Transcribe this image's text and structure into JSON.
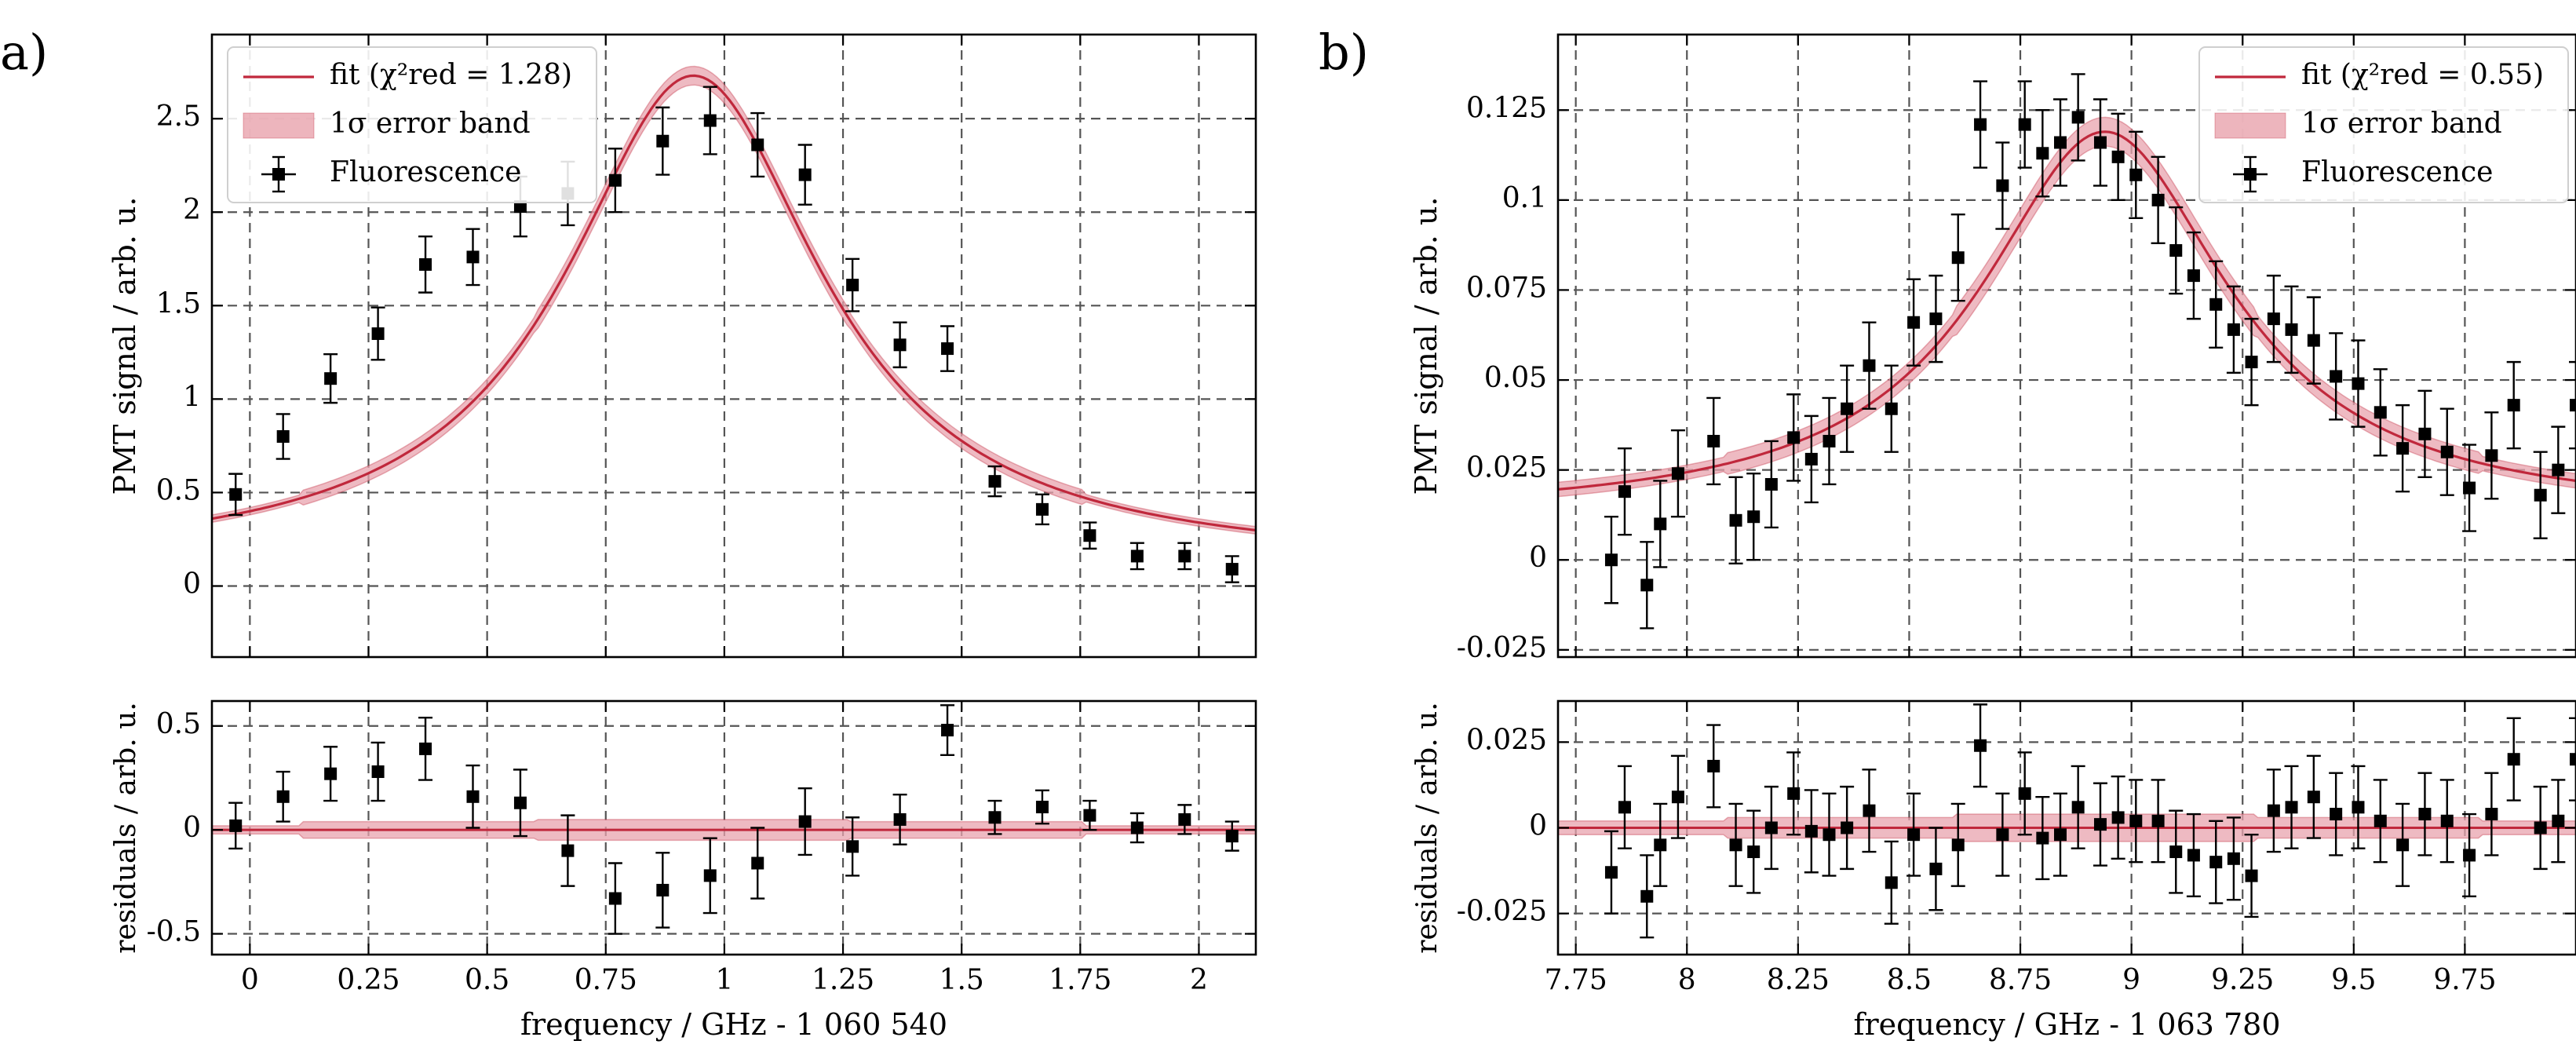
{
  "colors": {
    "fit": "#c0283c",
    "band": "#e8a3ad",
    "points": "#000000",
    "grid": "#555555"
  },
  "chart_data": [
    {
      "panel": "a)",
      "type": "scatter",
      "xlabel": "frequency / GHz - 1 060 540",
      "main": {
        "ylabel": "PMT signal / arb. u.",
        "xlim": [
          -0.08,
          2.12
        ],
        "ylim": [
          -0.38,
          2.95
        ],
        "xticks": [
          0,
          0.25,
          0.5,
          0.75,
          1,
          1.25,
          1.5,
          1.75,
          2
        ],
        "xtick_labels": [
          "0",
          "0.25",
          "0.5",
          "0.75",
          "1",
          "1.25",
          "1.5",
          "1.75",
          "2"
        ],
        "yticks": [
          0,
          0.5,
          1,
          1.5,
          2,
          2.5
        ],
        "ytick_labels": [
          "0",
          "0.5",
          "1",
          "1.5",
          "2",
          "2.5"
        ],
        "fit": {
          "model": "lorentzian",
          "amplitude": 2.62,
          "center": 0.935,
          "hwhm": 0.33,
          "offset": 0.11,
          "band_half_width": [
            0.05,
            0.04,
            0.02
          ]
        },
        "data": {
          "x": [
            -0.03,
            0.07,
            0.17,
            0.27,
            0.37,
            0.47,
            0.57,
            0.67,
            0.77,
            0.87,
            0.97,
            1.07,
            1.17,
            1.27,
            1.37,
            1.47,
            1.57,
            1.67,
            1.77,
            1.87,
            1.97,
            2.07
          ],
          "y": [
            0.49,
            0.8,
            1.11,
            1.35,
            1.72,
            1.76,
            2.03,
            2.1,
            2.17,
            2.38,
            2.49,
            2.36,
            2.2,
            1.61,
            1.29,
            1.27,
            0.56,
            0.41,
            0.27,
            0.16,
            0.16,
            0.09
          ],
          "yerr": [
            0.11,
            0.12,
            0.13,
            0.14,
            0.15,
            0.15,
            0.16,
            0.17,
            0.17,
            0.18,
            0.18,
            0.17,
            0.16,
            0.14,
            0.12,
            0.12,
            0.08,
            0.08,
            0.07,
            0.07,
            0.07,
            0.07
          ],
          "xerr": 0.012
        },
        "legend": [
          {
            "kind": "line",
            "label": "fit (χ²red = 1.28)"
          },
          {
            "kind": "band",
            "label": "1σ error band"
          },
          {
            "kind": "marker",
            "label": "Fluorescence"
          }
        ],
        "legend_position": "top-left"
      },
      "residuals": {
        "ylabel": "residuals / arb. u.",
        "ylim": [
          -0.6,
          0.62
        ],
        "yticks": [
          -0.5,
          0,
          0.5
        ],
        "ytick_labels": [
          "-0.5",
          "0",
          "0.5"
        ],
        "y": [
          0.02,
          0.16,
          0.27,
          0.28,
          0.39,
          0.16,
          0.13,
          -0.1,
          -0.33,
          -0.29,
          -0.22,
          -0.16,
          0.04,
          -0.08,
          0.05,
          0.48,
          0.06,
          0.11,
          0.07,
          0.01,
          0.05,
          -0.03
        ],
        "yerr": [
          0.11,
          0.12,
          0.13,
          0.14,
          0.15,
          0.15,
          0.16,
          0.17,
          0.17,
          0.18,
          0.18,
          0.17,
          0.16,
          0.14,
          0.12,
          0.12,
          0.08,
          0.08,
          0.07,
          0.07,
          0.07,
          0.07
        ]
      }
    },
    {
      "panel": "b)",
      "type": "scatter",
      "xlabel": "frequency / GHz - 1 063 780",
      "main": {
        "ylabel": "PMT signal / arb. u.",
        "xlim": [
          7.71,
          10.0
        ],
        "ylim": [
          -0.027,
          0.146
        ],
        "xticks": [
          7.75,
          8,
          8.25,
          8.5,
          8.75,
          9,
          9.25,
          9.5,
          9.75
        ],
        "xtick_labels": [
          "7.75",
          "8",
          "8.25",
          "8.5",
          "8.75",
          "9",
          "9.25",
          "9.5",
          "9.75"
        ],
        "yticks": [
          -0.025,
          0,
          0.025,
          0.05,
          0.075,
          0.1,
          0.125
        ],
        "ytick_labels": [
          "-0.025",
          "0",
          "0.025",
          "0.05",
          "0.075",
          "0.1",
          "0.125"
        ],
        "fit": {
          "model": "lorentzian",
          "amplitude": 0.107,
          "center": 8.94,
          "hwhm": 0.34,
          "offset": 0.012,
          "band_half_width": [
            0.004,
            0.003,
            0.002
          ]
        },
        "data": {
          "x": [
            7.83,
            7.86,
            7.91,
            7.94,
            7.98,
            8.06,
            8.11,
            8.15,
            8.19,
            8.24,
            8.28,
            8.32,
            8.36,
            8.41,
            8.46,
            8.51,
            8.56,
            8.61,
            8.66,
            8.71,
            8.76,
            8.8,
            8.84,
            8.88,
            8.93,
            8.97,
            9.01,
            9.06,
            9.1,
            9.14,
            9.19,
            9.23,
            9.27,
            9.32,
            9.36,
            9.41,
            9.46,
            9.51,
            9.56,
            9.61,
            9.66,
            9.71,
            9.76,
            9.81,
            9.86,
            9.92,
            9.96,
            10.0
          ],
          "y": [
            0.0,
            0.019,
            -0.007,
            0.01,
            0.024,
            0.033,
            0.011,
            0.012,
            0.021,
            0.034,
            0.028,
            0.033,
            0.042,
            0.054,
            0.042,
            0.066,
            0.067,
            0.084,
            0.121,
            0.104,
            0.121,
            0.113,
            0.116,
            0.123,
            0.116,
            0.112,
            0.107,
            0.1,
            0.086,
            0.079,
            0.071,
            0.064,
            0.055,
            0.067,
            0.064,
            0.061,
            0.051,
            0.049,
            0.041,
            0.031,
            0.035,
            0.03,
            0.02,
            0.029,
            0.043,
            0.018,
            0.025,
            0.043
          ],
          "yerr": 0.012,
          "xerr": 0.008
        },
        "legend": [
          {
            "kind": "line",
            "label": "fit (χ²red = 0.55)"
          },
          {
            "kind": "band",
            "label": "1σ error band"
          },
          {
            "kind": "marker",
            "label": "Fluorescence"
          }
        ],
        "legend_position": "top-right"
      },
      "residuals": {
        "ylabel": "residuals / arb. u.",
        "ylim": [
          -0.037,
          0.037
        ],
        "yticks": [
          -0.025,
          0,
          0.025
        ],
        "ytick_labels": [
          "-0.025",
          "0",
          "0.025"
        ],
        "y": [
          -0.013,
          0.006,
          -0.02,
          -0.005,
          0.009,
          0.018,
          -0.005,
          -0.007,
          0.0,
          0.01,
          -0.001,
          -0.002,
          0.0,
          0.005,
          -0.016,
          -0.002,
          -0.012,
          -0.005,
          0.024,
          -0.002,
          0.01,
          -0.003,
          -0.002,
          0.006,
          0.001,
          0.003,
          0.002,
          0.002,
          -0.007,
          -0.008,
          -0.01,
          -0.009,
          -0.014,
          0.005,
          0.006,
          0.009,
          0.004,
          0.006,
          0.002,
          -0.005,
          0.004,
          0.002,
          -0.008,
          0.004,
          0.02,
          0.0,
          0.002,
          0.02
        ],
        "yerr": 0.012
      }
    }
  ]
}
